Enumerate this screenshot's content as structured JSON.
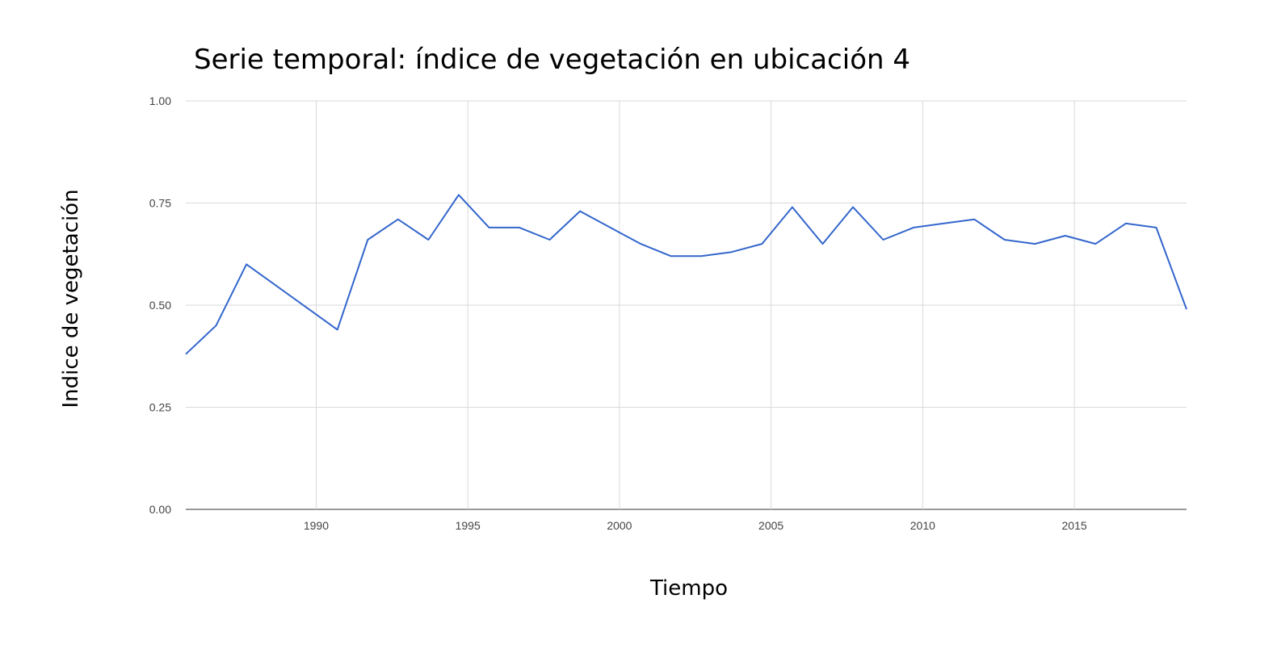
{
  "chart_data": {
    "type": "line",
    "title": "Serie temporal: índice de vegetación en ubicación 4",
    "xlabel": "Tiempo",
    "ylabel": "Indice de vegetación",
    "xlim": [
      1985.7,
      2018.7
    ],
    "ylim": [
      0,
      1
    ],
    "x_ticks": [
      "1990",
      "1995",
      "2000",
      "2005",
      "2010",
      "2015"
    ],
    "y_ticks": [
      "0.00",
      "0.25",
      "0.50",
      "0.75",
      "1.00"
    ],
    "grid": true,
    "legend": "none",
    "line_color": "#3366cc",
    "series": [
      {
        "x": [
          1985.7,
          1986.7,
          1987.7,
          1990.7,
          1991.7,
          1992.7,
          1993.7,
          1994.7,
          1995.7,
          1996.7,
          1997.7,
          1998.7,
          1999.7,
          2000.7,
          2001.7,
          2002.7,
          2003.7,
          2004.7,
          2005.7,
          2006.7,
          2007.7,
          2008.7,
          2009.7,
          2010.7,
          2011.7,
          2012.7,
          2013.7,
          2014.7,
          2015.7,
          2016.7,
          2017.7,
          2018.7
        ],
        "values": [
          0.38,
          0.45,
          0.6,
          0.44,
          0.66,
          0.71,
          0.66,
          0.77,
          0.69,
          0.69,
          0.66,
          0.73,
          0.69,
          0.65,
          0.62,
          0.62,
          0.63,
          0.65,
          0.74,
          0.65,
          0.74,
          0.66,
          0.69,
          0.7,
          0.71,
          0.66,
          0.65,
          0.67,
          0.65,
          0.7,
          0.69,
          0.49
        ]
      }
    ]
  }
}
